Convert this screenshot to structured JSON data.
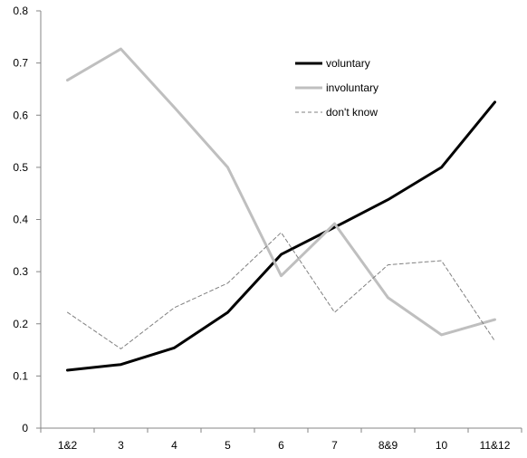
{
  "chart_data": {
    "type": "line",
    "title": "",
    "xlabel": "",
    "ylabel": "",
    "categories": [
      "1&2",
      "3",
      "4",
      "5",
      "6",
      "7",
      "8&9",
      "10",
      "11&12"
    ],
    "ylim": [
      0,
      0.8
    ],
    "yticks": [
      "0",
      "0.1",
      "0.2",
      "0.3",
      "0.4",
      "0.5",
      "0.6",
      "0.7",
      "0.8"
    ],
    "grid": false,
    "legend_position": "top-right",
    "series": [
      {
        "name": "voluntary",
        "color": "#000000",
        "style": "solid-thick",
        "values": [
          0.111,
          0.122,
          0.154,
          0.222,
          0.333,
          0.385,
          0.438,
          0.5,
          0.625
        ]
      },
      {
        "name": "involuntary",
        "color": "#bfbfbf",
        "style": "solid-thick",
        "values": [
          0.667,
          0.727,
          0.615,
          0.5,
          0.292,
          0.392,
          0.25,
          0.179,
          0.208
        ]
      },
      {
        "name": "don't know",
        "color": "#808080",
        "style": "dashed-thin",
        "values": [
          0.222,
          0.152,
          0.231,
          0.278,
          0.375,
          0.222,
          0.313,
          0.321,
          0.167
        ]
      }
    ]
  }
}
